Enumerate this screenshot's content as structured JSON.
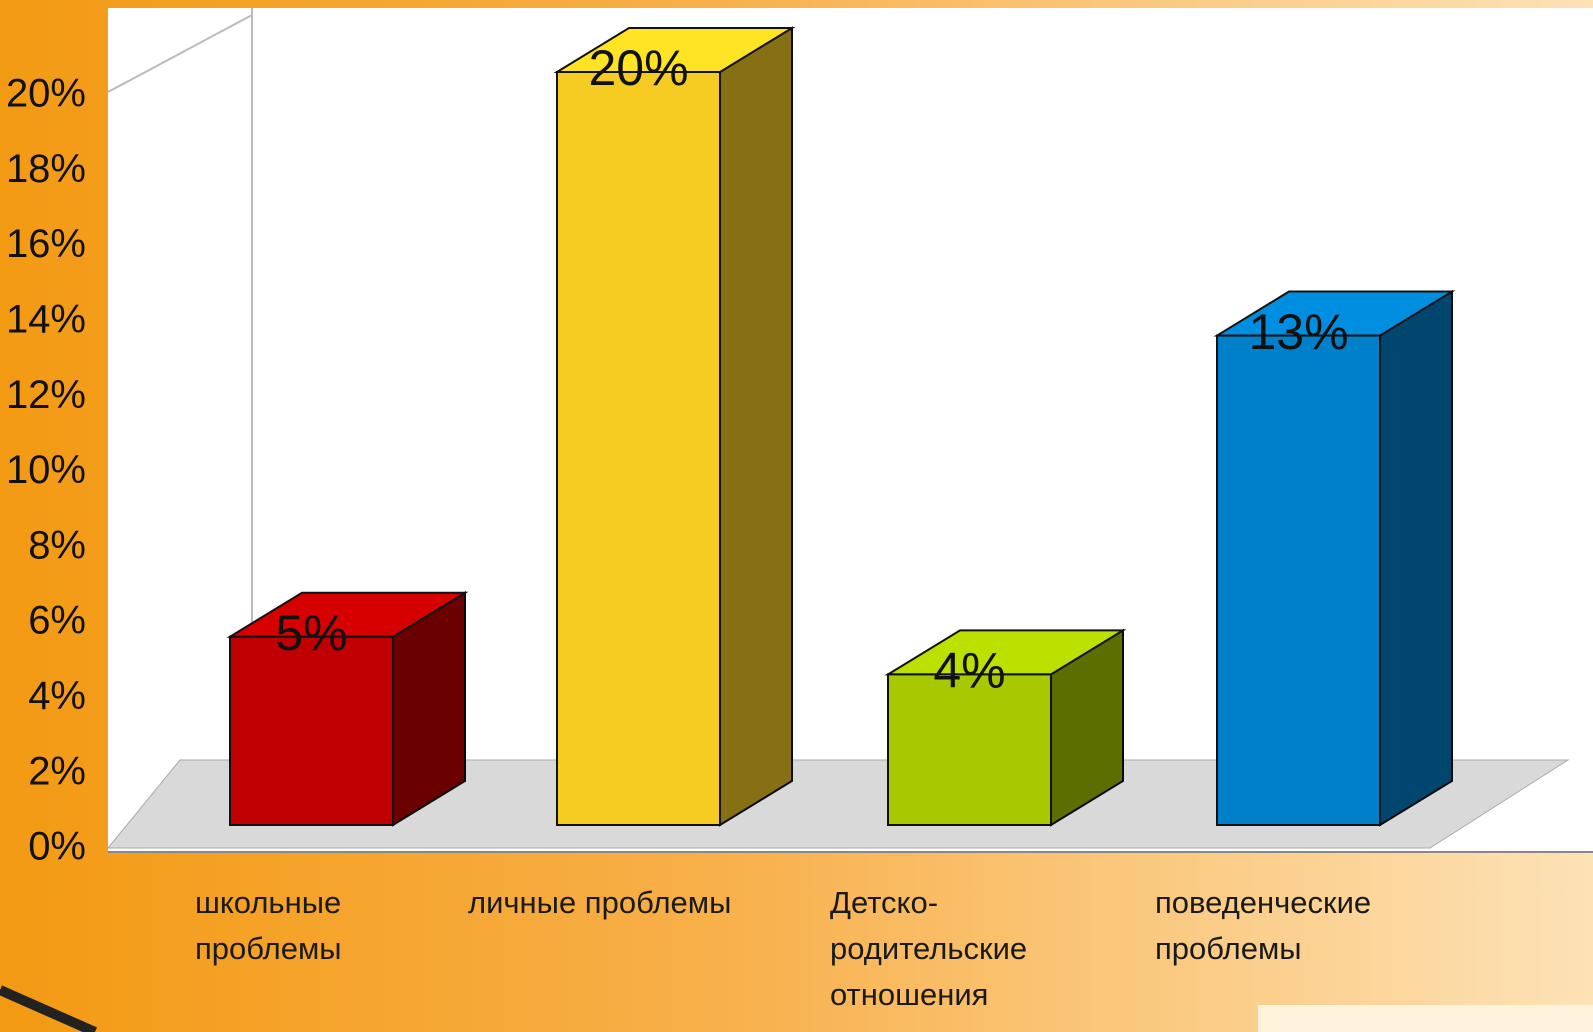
{
  "chart_data": {
    "type": "bar3d",
    "categories": [
      "школьные проблемы",
      "личные проблемы",
      "Детско-родительские отношения",
      "поведенческие проблемы"
    ],
    "values": [
      5,
      20,
      4,
      13
    ],
    "value_labels": [
      "5%",
      "20%",
      "4%",
      "13%"
    ],
    "colors": [
      "#c00000",
      "#f6cc22",
      "#a8c800",
      "#0080c8"
    ],
    "ylim": [
      0,
      20
    ],
    "yticks": [
      {
        "value": 0,
        "label": "0%"
      },
      {
        "value": 2,
        "label": "2%"
      },
      {
        "value": 4,
        "label": "4%"
      },
      {
        "value": 6,
        "label": "6%"
      },
      {
        "value": 8,
        "label": "8%"
      },
      {
        "value": 10,
        "label": "10%"
      },
      {
        "value": 12,
        "label": "12%"
      },
      {
        "value": 14,
        "label": "14%"
      },
      {
        "value": 16,
        "label": "16%"
      },
      {
        "value": 18,
        "label": "18%"
      },
      {
        "value": 20,
        "label": "20%"
      }
    ]
  }
}
